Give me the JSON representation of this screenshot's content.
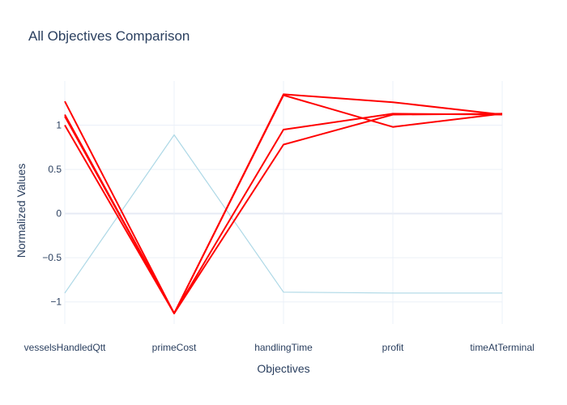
{
  "chart_data": {
    "type": "line",
    "title": "All Objectives Comparison",
    "xlabel": "Objectives",
    "ylabel": "Normalized Values",
    "categories": [
      "vesselsHandledQtt",
      "primeCost",
      "handlingTime",
      "profit",
      "timeAtTerminal"
    ],
    "ylim": [
      -1.25,
      1.5
    ],
    "yticks": [
      -1,
      -0.5,
      0,
      0.5,
      1
    ],
    "ytick_labels": [
      "−1",
      "−0.5",
      "0",
      "0.5",
      "1"
    ],
    "grid": true,
    "series": [
      {
        "color": "#add8e6",
        "width": 1.2,
        "values": [
          -0.9,
          0.89,
          -0.89,
          -0.9,
          -0.9
        ]
      },
      {
        "color": "#ff0000",
        "width": 2,
        "values": [
          1.27,
          -1.13,
          1.35,
          1.26,
          1.12
        ]
      },
      {
        "color": "#ff0000",
        "width": 2,
        "values": [
          1.12,
          -1.13,
          1.34,
          0.98,
          1.13
        ]
      },
      {
        "color": "#ff0000",
        "width": 2,
        "values": [
          1.1,
          -1.13,
          0.95,
          1.13,
          1.12
        ]
      },
      {
        "color": "#ff0000",
        "width": 2,
        "values": [
          1.0,
          -1.13,
          0.78,
          1.12,
          1.13
        ]
      }
    ]
  }
}
